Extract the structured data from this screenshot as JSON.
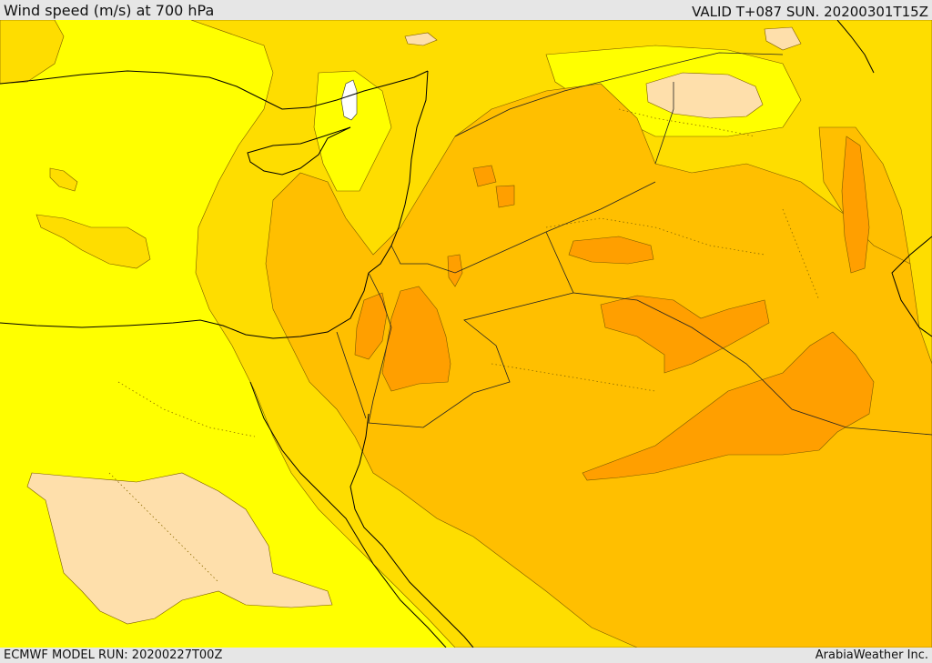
{
  "header": {
    "title": "Wind speed (m/s) at 700 hPa",
    "valid_time": "VALID T+087 SUN. 20200301T15Z"
  },
  "footer": {
    "model_run": "ECMWF MODEL RUN: 20200227T00Z",
    "credit": "ArabiaWeather Inc."
  },
  "map": {
    "variable": "wind speed",
    "level": "700 hPa",
    "colors": {
      "very_low": "#ffffff",
      "low": "#fedfab",
      "moderate": "#ffff00",
      "elevated": "#fedd00",
      "high": "#ffbf00",
      "very_high": "#ff9f00",
      "coastline": "#000000"
    }
  }
}
